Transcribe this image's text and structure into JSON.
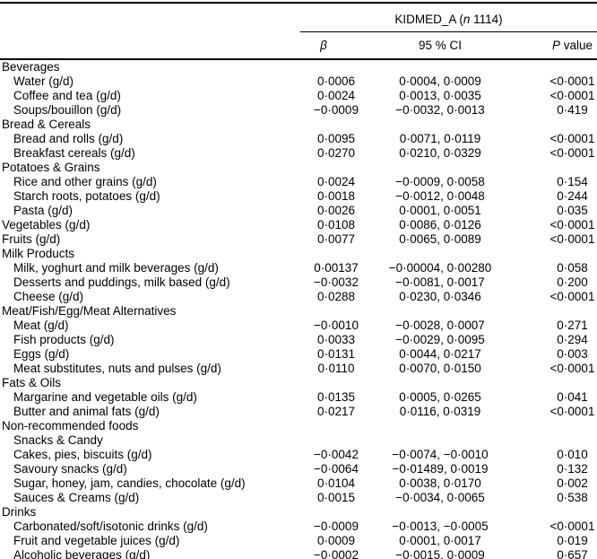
{
  "header": {
    "group": {
      "pre": "KIDMED_A (",
      "n_italic": "n",
      "post": " 1114)"
    },
    "columns": {
      "beta": "β",
      "ci": "95 % CI",
      "p_italic": "P",
      "p_rest": " value"
    }
  },
  "table": {
    "rows": [
      {
        "label": "Beverages",
        "indent": 0,
        "type": "category",
        "beta": "",
        "ci": "",
        "p": ""
      },
      {
        "label": "Water (g/d)",
        "indent": 1,
        "type": "item",
        "beta": "0·0006",
        "ci": "0·0004, 0·0009",
        "p": "<0·0001"
      },
      {
        "label": "Coffee and tea (g/d)",
        "indent": 1,
        "type": "item",
        "beta": "0·0024",
        "ci": "0·0013, 0·0035",
        "p": "<0·0001"
      },
      {
        "label": "Soups/bouillon (g/d)",
        "indent": 1,
        "type": "item",
        "beta": "−0·0009",
        "ci": "−0·0032, 0·0013",
        "p": "0·419"
      },
      {
        "label": "Bread & Cereals",
        "indent": 0,
        "type": "category",
        "beta": "",
        "ci": "",
        "p": ""
      },
      {
        "label": "Bread and rolls (g/d)",
        "indent": 1,
        "type": "item",
        "beta": "0·0095",
        "ci": "0·0071, 0·0119",
        "p": "<0·0001"
      },
      {
        "label": "Breakfast cereals (g/d)",
        "indent": 1,
        "type": "item",
        "beta": "0·0270",
        "ci": "0·0210, 0·0329",
        "p": "<0·0001"
      },
      {
        "label": "Potatoes & Grains",
        "indent": 0,
        "type": "category",
        "beta": "",
        "ci": "",
        "p": ""
      },
      {
        "label": "Rice and other grains (g/d)",
        "indent": 1,
        "type": "item",
        "beta": "0·0024",
        "ci": "−0·0009, 0·0058",
        "p": "0·154"
      },
      {
        "label": "Starch roots, potatoes (g/d)",
        "indent": 1,
        "type": "item",
        "beta": "0·0018",
        "ci": "−0·0012, 0·0048",
        "p": "0·244"
      },
      {
        "label": "Pasta (g/d)",
        "indent": 1,
        "type": "item",
        "beta": "0·0026",
        "ci": "0·0001, 0·0051",
        "p": "0·035"
      },
      {
        "label": "Vegetables (g/d)",
        "indent": 0,
        "type": "item",
        "beta": "0·0108",
        "ci": "0·0086, 0·0126",
        "p": "<0·0001"
      },
      {
        "label": "Fruits (g/d)",
        "indent": 0,
        "type": "item",
        "beta": "0·0077",
        "ci": "0·0065, 0·0089",
        "p": "<0·0001"
      },
      {
        "label": "Milk Products",
        "indent": 0,
        "type": "category",
        "beta": "",
        "ci": "",
        "p": ""
      },
      {
        "label": "Milk, yoghurt and milk beverages (g/d)",
        "indent": 1,
        "type": "item",
        "beta": "0·00137",
        "ci": "−0·00004, 0·00280",
        "p": "0·058"
      },
      {
        "label": "Desserts and puddings, milk based (g/d)",
        "indent": 1,
        "type": "item",
        "beta": "−0·0032",
        "ci": "−0·0081, 0·0017",
        "p": "0·200"
      },
      {
        "label": "Cheese (g/d)",
        "indent": 1,
        "type": "item",
        "beta": "0·0288",
        "ci": "0·0230, 0·0346",
        "p": "<0·0001"
      },
      {
        "label": "Meat/Fish/Egg/Meat Alternatives",
        "indent": 0,
        "type": "category",
        "beta": "",
        "ci": "",
        "p": ""
      },
      {
        "label": "Meat (g/d)",
        "indent": 1,
        "type": "item",
        "beta": "−0·0010",
        "ci": "−0·0028, 0·0007",
        "p": "0·271"
      },
      {
        "label": "Fish products (g/d)",
        "indent": 1,
        "type": "item",
        "beta": "0·0033",
        "ci": "−0·0029, 0·0095",
        "p": "0·294"
      },
      {
        "label": "Eggs (g/d)",
        "indent": 1,
        "type": "item",
        "beta": "0·0131",
        "ci": "0·0044, 0·0217",
        "p": "0·003"
      },
      {
        "label": "Meat substitutes, nuts and pulses (g/d)",
        "indent": 1,
        "type": "item",
        "beta": "0·0110",
        "ci": "0·0070, 0·0150",
        "p": "<0·0001"
      },
      {
        "label": "Fats & Oils",
        "indent": 0,
        "type": "category",
        "beta": "",
        "ci": "",
        "p": ""
      },
      {
        "label": "Margarine and vegetable oils (g/d)",
        "indent": 1,
        "type": "item",
        "beta": "0·0135",
        "ci": "0·0005, 0·0265",
        "p": "0·041"
      },
      {
        "label": "Butter and animal fats (g/d)",
        "indent": 1,
        "type": "item",
        "beta": "0·0217",
        "ci": "0·0116, 0·0319",
        "p": "<0·0001"
      },
      {
        "label": "Non-recommended foods",
        "indent": 0,
        "type": "category",
        "beta": "",
        "ci": "",
        "p": ""
      },
      {
        "label": "Snacks & Candy",
        "indent": 1,
        "type": "subcategory",
        "beta": "",
        "ci": "",
        "p": ""
      },
      {
        "label": "Cakes, pies, biscuits (g/d)",
        "indent": 1,
        "type": "item",
        "beta": "−0·0042",
        "ci": "−0·0074, −0·0010",
        "p": "0·010"
      },
      {
        "label": "Savoury snacks (g/d)",
        "indent": 1,
        "type": "item",
        "beta": "−0·0064",
        "ci": "−0·01489, 0·0019",
        "p": "0·132"
      },
      {
        "label": "Sugar, honey, jam, candies, chocolate (g/d)",
        "indent": 1,
        "type": "item",
        "beta": "0·0104",
        "ci": "0·0038, 0·0170",
        "p": "0·002"
      },
      {
        "label": "Sauces & Creams (g/d)",
        "indent": 1,
        "type": "item",
        "beta": "0·0015",
        "ci": "−0·0034, 0·0065",
        "p": "0·538"
      },
      {
        "label": "Drinks",
        "indent": 0,
        "type": "category",
        "beta": "",
        "ci": "",
        "p": ""
      },
      {
        "label": "Carbonated/soft/isotonic drinks (g/d)",
        "indent": 1,
        "type": "item",
        "beta": "−0·0009",
        "ci": "−0·0013, −0·0005",
        "p": "<0·0001"
      },
      {
        "label": "Fruit and vegetable juices (g/d)",
        "indent": 1,
        "type": "item",
        "beta": "0·0009",
        "ci": "0·0001, 0·0017",
        "p": "0·019"
      },
      {
        "label": "Alcoholic beverages (g/d)",
        "indent": 1,
        "type": "item",
        "beta": "−0·0002",
        "ci": "−0·0015, 0·0009",
        "p": "0·657"
      }
    ]
  }
}
